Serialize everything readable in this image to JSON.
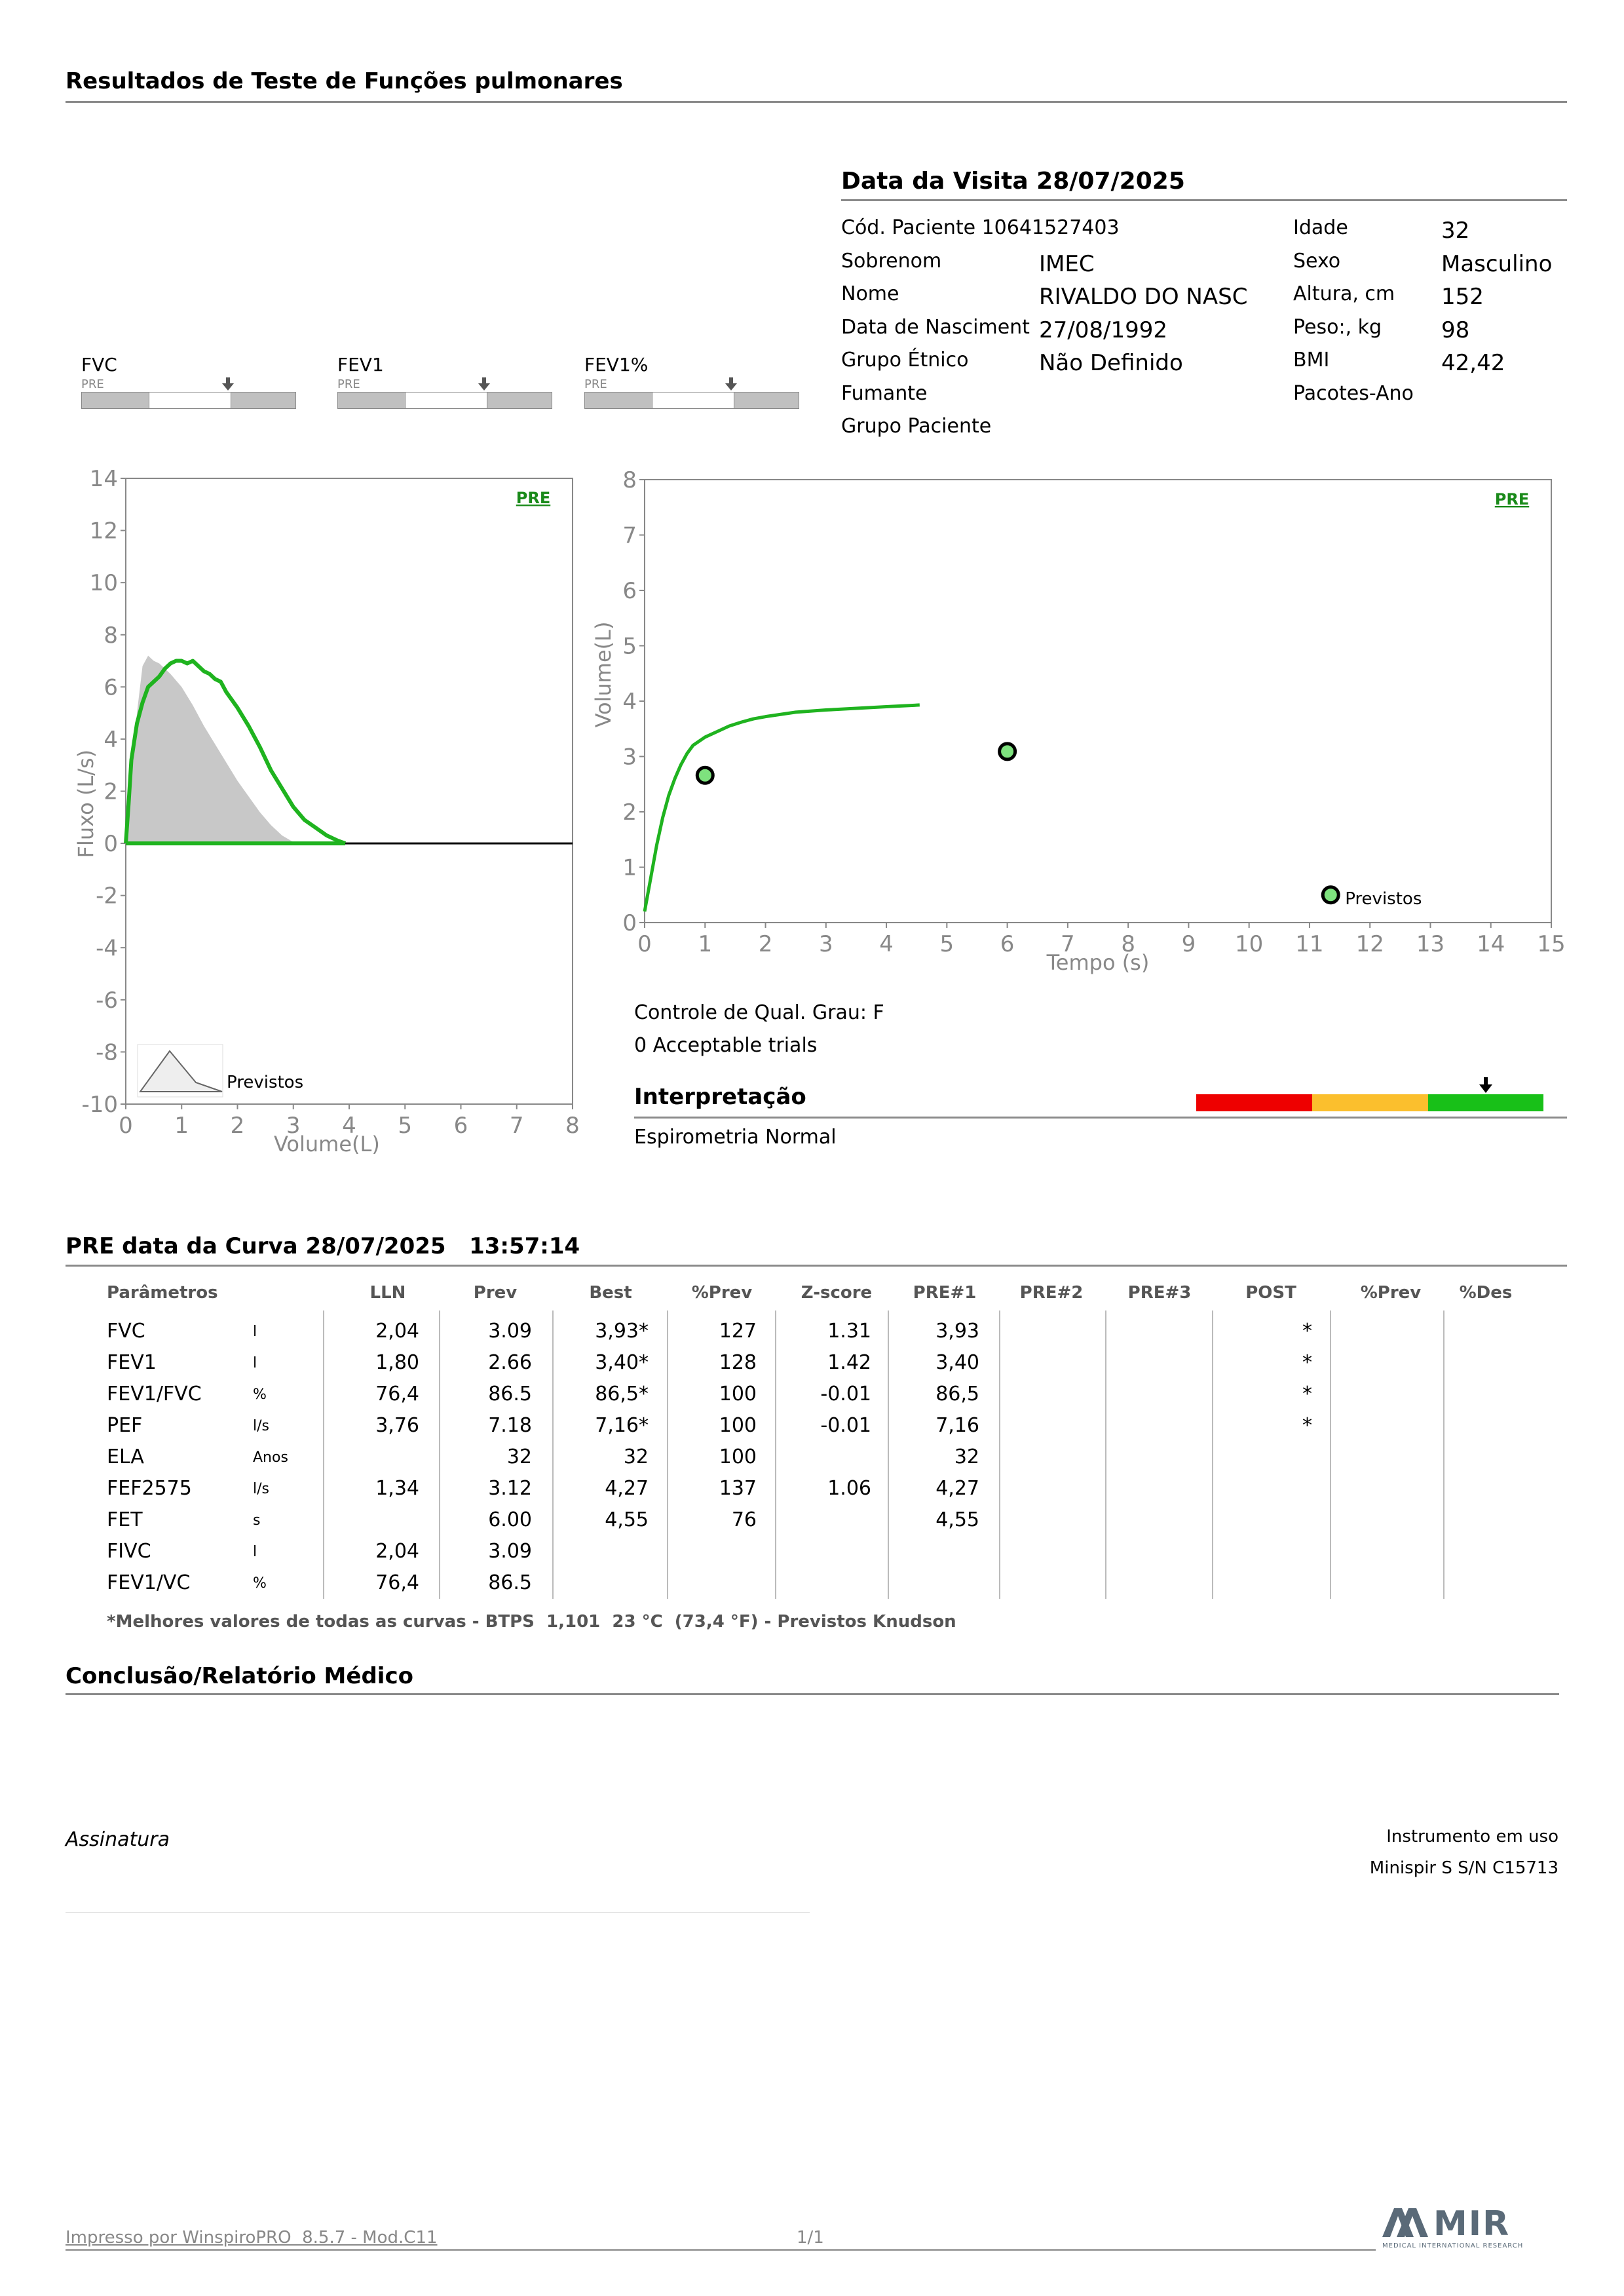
{
  "header": {
    "title": "Resultados de Teste de Funções pulmonares"
  },
  "visit": {
    "title": "Data da Visita 28/07/2025",
    "left": [
      {
        "label": "Cód. Paciente 10641527403",
        "value": ""
      },
      {
        "label": "Sobrenom",
        "value": "IMEC"
      },
      {
        "label": "Nome",
        "value": "RIVALDO DO NASC"
      },
      {
        "label": "Data de Nasciment",
        "value": "27/08/1992"
      },
      {
        "label": "Grupo Étnico",
        "value": "Não Definido"
      },
      {
        "label": "Fumante",
        "value": ""
      },
      {
        "label": "Grupo Paciente",
        "value": ""
      }
    ],
    "right": [
      {
        "label": "Idade",
        "value": "32"
      },
      {
        "label": "Sexo",
        "value": "Masculino"
      },
      {
        "label": "Altura, cm",
        "value": "152"
      },
      {
        "label": "Peso:, kg",
        "value": "98"
      },
      {
        "label": "BMI",
        "value": "42,42"
      },
      {
        "label": "Pacotes-Ano",
        "value": ""
      }
    ]
  },
  "gauges": [
    {
      "name": "FVC",
      "tag": "PRE"
    },
    {
      "name": "FEV1",
      "tag": "PRE"
    },
    {
      "name": "FEV1%",
      "tag": "PRE"
    }
  ],
  "chart_data": [
    {
      "type": "line",
      "tag": "PRE",
      "xlabel": "Volume(L)",
      "ylabel": "Fluxo (L/s)",
      "xlim": [
        0,
        8
      ],
      "ylim": [
        -10,
        14
      ],
      "xticks": [
        "0",
        "1",
        "2",
        "3",
        "4",
        "5",
        "6",
        "7",
        "8"
      ],
      "yticks": [
        "14",
        "12",
        "10",
        "8",
        "6",
        "4",
        "2",
        "0",
        "-2",
        "-4",
        "-6",
        "-8",
        "-10"
      ],
      "legend": "Previstos",
      "series": [
        {
          "name": "PRE",
          "color": "#1fb31f",
          "x": [
            0,
            0.05,
            0.1,
            0.2,
            0.3,
            0.4,
            0.5,
            0.6,
            0.7,
            0.8,
            0.9,
            1.0,
            1.1,
            1.2,
            1.3,
            1.4,
            1.5,
            1.6,
            1.7,
            1.8,
            2.0,
            2.2,
            2.4,
            2.6,
            2.8,
            3.0,
            3.2,
            3.4,
            3.6,
            3.8,
            3.93
          ],
          "y": [
            0,
            1.5,
            3.2,
            4.6,
            5.4,
            6.0,
            6.2,
            6.4,
            6.7,
            6.9,
            7.0,
            7.0,
            6.9,
            7.0,
            6.8,
            6.6,
            6.5,
            6.3,
            6.2,
            5.8,
            5.2,
            4.5,
            3.7,
            2.8,
            2.1,
            1.4,
            0.9,
            0.6,
            0.3,
            0.1,
            0
          ]
        },
        {
          "name": "Previstos",
          "color": "#c8c8c8",
          "x": [
            0,
            0.1,
            0.2,
            0.3,
            0.4,
            0.5,
            0.6,
            0.7,
            0.8,
            1.0,
            1.2,
            1.4,
            1.6,
            1.8,
            2.0,
            2.2,
            2.4,
            2.6,
            2.8,
            3.0,
            3.09
          ],
          "y": [
            0,
            2.5,
            5.0,
            6.8,
            7.2,
            7.0,
            6.9,
            6.7,
            6.5,
            6.0,
            5.3,
            4.5,
            3.8,
            3.1,
            2.4,
            1.8,
            1.2,
            0.7,
            0.3,
            0.05,
            0
          ]
        }
      ]
    },
    {
      "type": "line",
      "tag": "PRE",
      "xlabel": "Tempo (s)",
      "ylabel": "Volume(L)",
      "xlim": [
        0,
        15
      ],
      "ylim": [
        0,
        8
      ],
      "xticks": [
        "0",
        "1",
        "2",
        "3",
        "4",
        "5",
        "6",
        "7",
        "8",
        "9",
        "10",
        "11",
        "12",
        "13",
        "14",
        "15"
      ],
      "yticks": [
        "8",
        "7",
        "6",
        "5",
        "4",
        "3",
        "2",
        "1",
        "0"
      ],
      "legend": "Previstos",
      "series": [
        {
          "name": "PRE",
          "color": "#1fb31f",
          "x": [
            0,
            0.1,
            0.2,
            0.3,
            0.4,
            0.5,
            0.6,
            0.7,
            0.8,
            1.0,
            1.2,
            1.4,
            1.6,
            1.8,
            2.0,
            2.5,
            3.0,
            3.5,
            4.0,
            4.55
          ],
          "y": [
            0.2,
            0.8,
            1.4,
            1.9,
            2.3,
            2.6,
            2.85,
            3.05,
            3.2,
            3.35,
            3.45,
            3.55,
            3.62,
            3.68,
            3.72,
            3.8,
            3.84,
            3.87,
            3.9,
            3.93
          ]
        },
        {
          "name": "Previstos",
          "color": "#7ee27e",
          "points": [
            [
              1,
              2.66
            ],
            [
              6,
              3.09
            ],
            [
              11.35,
              0.5
            ]
          ]
        }
      ]
    }
  ],
  "quality": {
    "grade": "Controle de Qual. Grau: F",
    "trials": "0 Acceptable trials"
  },
  "interpretation": {
    "title": "Interpretação",
    "text": "Espirometria Normal",
    "colors": [
      "#ee0000",
      "#fbbf2d",
      "#18c018"
    ]
  },
  "curve": {
    "title": "PRE data da Curva 28/07/2025   13:57:14",
    "headers": [
      "Parâmetros",
      "LLN",
      "Prev",
      "Best",
      "%Prev",
      "Z-score",
      "PRE#1",
      "PRE#2",
      "PRE#3",
      "POST",
      "%Prev",
      "%Des"
    ],
    "rows": [
      {
        "param": "FVC",
        "unit": "l",
        "lln": "2,04",
        "prev": "3.09",
        "best": "3,93*",
        "pprev": "127",
        "z": "1.31",
        "pre1": "3,93",
        "post": "*"
      },
      {
        "param": "FEV1",
        "unit": "l",
        "lln": "1,80",
        "prev": "2.66",
        "best": "3,40*",
        "pprev": "128",
        "z": "1.42",
        "pre1": "3,40",
        "post": "*"
      },
      {
        "param": "FEV1/FVC",
        "unit": "%",
        "lln": "76,4",
        "prev": "86.5",
        "best": "86,5*",
        "pprev": "100",
        "z": "-0.01",
        "pre1": "86,5",
        "post": "*"
      },
      {
        "param": "PEF",
        "unit": "l/s",
        "lln": "3,76",
        "prev": "7.18",
        "best": "7,16*",
        "pprev": "100",
        "z": "-0.01",
        "pre1": "7,16",
        "post": "*"
      },
      {
        "param": "ELA",
        "unit": "Anos",
        "lln": "",
        "prev": "32",
        "best": "32",
        "pprev": "100",
        "z": "",
        "pre1": "32",
        "post": ""
      },
      {
        "param": "FEF2575",
        "unit": "l/s",
        "lln": "1,34",
        "prev": "3.12",
        "best": "4,27",
        "pprev": "137",
        "z": "1.06",
        "pre1": "4,27",
        "post": ""
      },
      {
        "param": "FET",
        "unit": "s",
        "lln": "",
        "prev": "6.00",
        "best": "4,55",
        "pprev": "76",
        "z": "",
        "pre1": "4,55",
        "post": ""
      },
      {
        "param": "FIVC",
        "unit": "l",
        "lln": "2,04",
        "prev": "3.09",
        "best": "",
        "pprev": "",
        "z": "",
        "pre1": "",
        "post": ""
      },
      {
        "param": "FEV1/VC",
        "unit": "%",
        "lln": "76,4",
        "prev": "86.5",
        "best": "",
        "pprev": "",
        "z": "",
        "pre1": "",
        "post": ""
      }
    ],
    "footnote": "*Melhores valores de todas as curvas - BTPS  1,101  23 °C  (73,4 °F) - Previstos Knudson"
  },
  "conclusion": {
    "title": "Conclusão/Relatório Médico"
  },
  "signature": {
    "label": "Assinatura"
  },
  "instrument": {
    "label": "Instrumento em uso",
    "value": "Minispir S S/N C15713"
  },
  "footer": {
    "printed": "Impresso por WinspiroPRO  8.5.7 - Mod.C11",
    "page": "1/1",
    "logo": "MIR",
    "logo_sub": "MEDICAL INTERNATIONAL RESEARCH"
  }
}
